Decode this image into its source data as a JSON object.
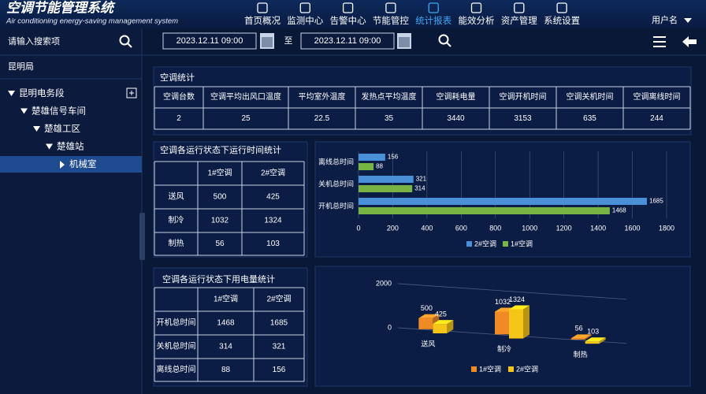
{
  "header": {
    "title": "空调节能管理系统",
    "subtitle": "Air conditioning energy-saving management system",
    "nav": [
      {
        "label": "首页概况"
      },
      {
        "label": "监测中心"
      },
      {
        "label": "告警中心"
      },
      {
        "label": "节能管控"
      },
      {
        "label": "统计报表",
        "active": true
      },
      {
        "label": "能效分析"
      },
      {
        "label": "资产管理"
      },
      {
        "label": "系统设置"
      }
    ],
    "user": "用户名"
  },
  "sidebar": {
    "search_placeholder": "请输入搜索项",
    "root": "昆明局",
    "tree": {
      "label": "昆明电务段",
      "children": [
        {
          "label": "楚雄信号车间",
          "children": [
            {
              "label": "楚雄工区",
              "children": [
                {
                  "label": "楚雄站",
                  "children": [
                    {
                      "label": "机械室",
                      "selected": true
                    }
                  ]
                }
              ]
            }
          ]
        }
      ]
    }
  },
  "toolbar": {
    "start": "2023.12.11  09:00",
    "to": "至",
    "end": "2023.12.11  09:00"
  },
  "summary": {
    "title": "空调统计",
    "headers": [
      "空调台数",
      "空调平均出风口温度",
      "平均室外温度",
      "发热点平均温度",
      "空调耗电量",
      "空调开机时间",
      "空调关机时间",
      "空调离线时间"
    ],
    "row": [
      2,
      25,
      22.5,
      35,
      3440,
      3153,
      635,
      244
    ]
  },
  "runtime_table": {
    "title": "空调各运行状态下运行时间统计",
    "headers": [
      "1#空调",
      "2#空调"
    ],
    "rows": [
      {
        "label": "送风",
        "values": [
          500,
          425
        ]
      },
      {
        "label": "制冷",
        "values": [
          1032,
          1324
        ]
      },
      {
        "label": "制热",
        "values": [
          56,
          103
        ]
      }
    ]
  },
  "power_table": {
    "title": "空调各运行状态下用电量统计",
    "headers": [
      "1#空调",
      "2#空调"
    ],
    "rows": [
      {
        "label": "开机总时间",
        "values": [
          1468,
          1685
        ]
      },
      {
        "label": "关机总时间",
        "values": [
          314,
          321
        ]
      },
      {
        "label": "离线总时间",
        "values": [
          88,
          156
        ]
      }
    ]
  },
  "chart_data": [
    {
      "type": "hbar",
      "categories": [
        "离线总时间",
        "关机总时间",
        "开机总时间"
      ],
      "series": [
        {
          "name": "2#空调",
          "color": "#4a90d9",
          "values": [
            156,
            321,
            1685
          ]
        },
        {
          "name": "1#空调",
          "color": "#78b443",
          "values": [
            88,
            314,
            1468
          ]
        }
      ],
      "xlim": [
        0,
        1800
      ],
      "xticks": [
        0,
        200,
        400,
        600,
        800,
        1000,
        1200,
        1400,
        1600,
        1800
      ],
      "grid": true,
      "legend": "bottom"
    },
    {
      "type": "bar3d",
      "categories": [
        "送风",
        "制冷",
        "制热"
      ],
      "series": [
        {
          "name": "1#空调",
          "color": "#f08a24",
          "values": [
            500,
            1032,
            56
          ]
        },
        {
          "name": "2#空调",
          "color": "#f5c518",
          "values": [
            425,
            1324,
            103
          ]
        }
      ],
      "ylim": [
        0,
        2000
      ],
      "yticks": [
        0,
        2000
      ],
      "grid": true,
      "legend": "bottom"
    }
  ]
}
